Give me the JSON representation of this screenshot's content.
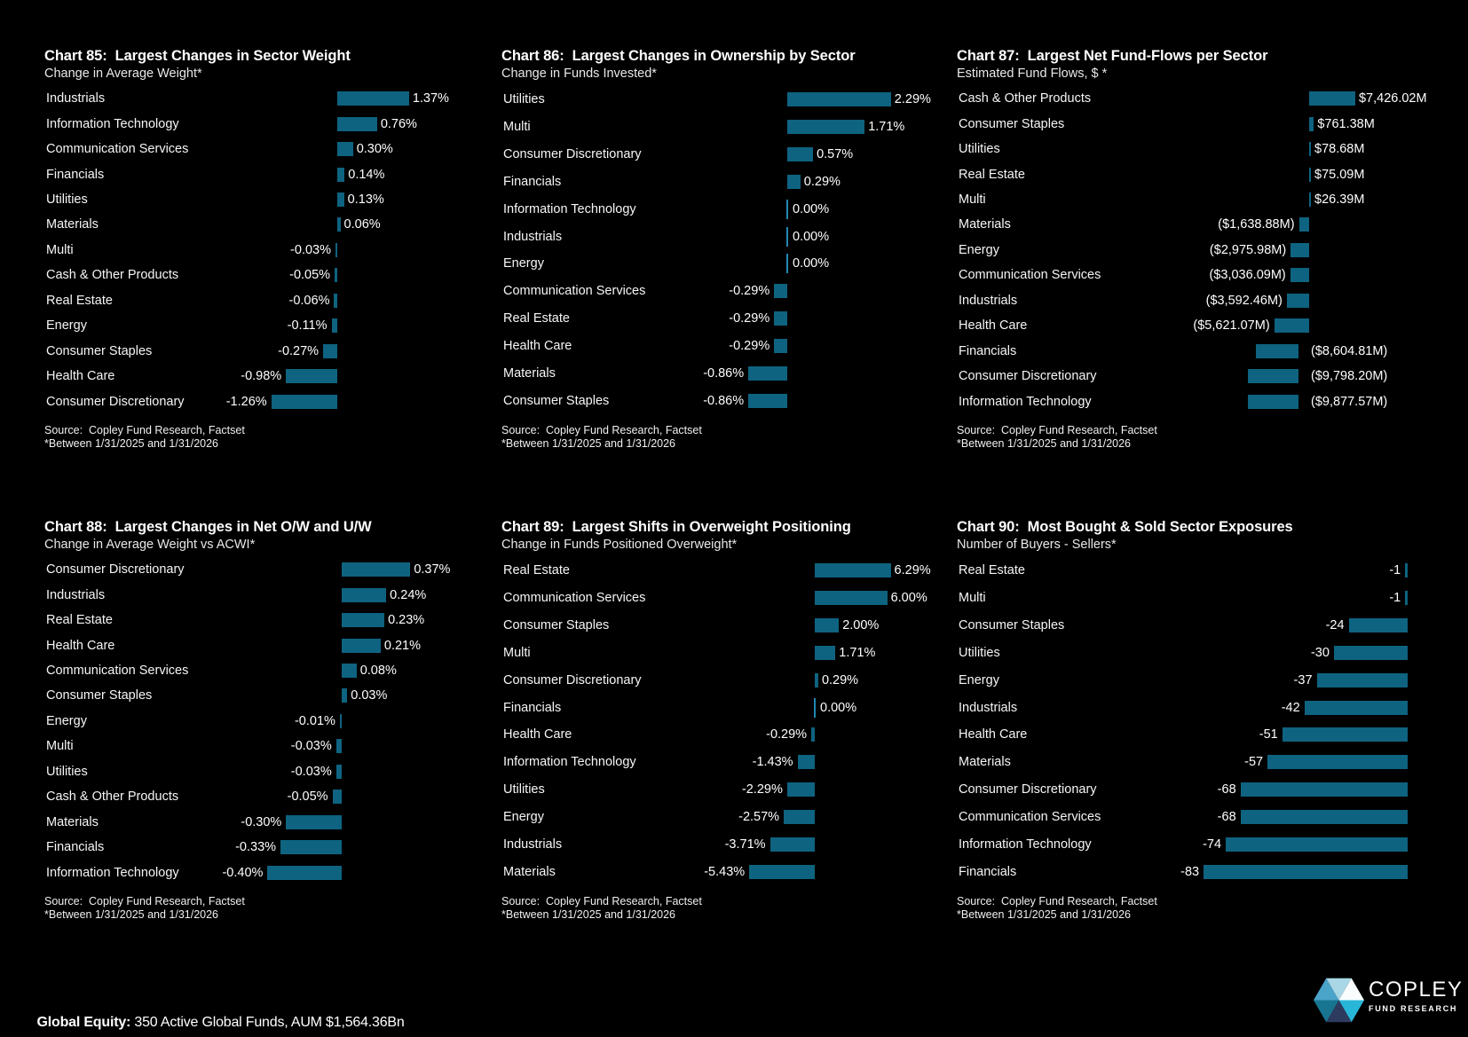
{
  "page": {
    "footer": {
      "label_bold": "Global Equity:",
      "label_rest": " 350 Active Global Funds, AUM $1,564.36Bn"
    },
    "logo": {
      "line1": "COPLEY",
      "line2": "FUND RESEARCH"
    }
  },
  "colors": {
    "background": "#000000",
    "bar": "#0E6380",
    "zero_tick": "#2189B2",
    "logo_teal": "#2BB6D8"
  },
  "chart_data": [
    {
      "id": "chart-85",
      "type": "bar",
      "orientation": "horizontal-diverging",
      "title": "Chart 85:  Largest Changes in Sector Weight",
      "subtitle": "Change in Average Weight*",
      "unit": "%",
      "source_line1": "Source:  Copley Fund Research, Factset",
      "source_line2": "*Between 1/31/2025 and 1/31/2026",
      "items": [
        {
          "sector": "Industrials",
          "value": 1.37,
          "display": "1.37%"
        },
        {
          "sector": "Information Technology",
          "value": 0.76,
          "display": "0.76%"
        },
        {
          "sector": "Communication Services",
          "value": 0.3,
          "display": "0.30%"
        },
        {
          "sector": "Financials",
          "value": 0.14,
          "display": "0.14%"
        },
        {
          "sector": "Utilities",
          "value": 0.13,
          "display": "0.13%"
        },
        {
          "sector": "Materials",
          "value": 0.06,
          "display": "0.06%"
        },
        {
          "sector": "Multi",
          "value": -0.03,
          "display": "-0.03%"
        },
        {
          "sector": "Cash & Other Products",
          "value": -0.05,
          "display": "-0.05%"
        },
        {
          "sector": "Real Estate",
          "value": -0.06,
          "display": "-0.06%"
        },
        {
          "sector": "Energy",
          "value": -0.11,
          "display": "-0.11%"
        },
        {
          "sector": "Consumer Staples",
          "value": -0.27,
          "display": "-0.27%"
        },
        {
          "sector": "Health Care",
          "value": -0.98,
          "display": "-0.98%"
        },
        {
          "sector": "Consumer Discretionary",
          "value": -1.26,
          "display": "-1.26%"
        }
      ]
    },
    {
      "id": "chart-86",
      "type": "bar",
      "orientation": "horizontal-diverging",
      "title": "Chart 86:  Largest Changes in Ownership by Sector",
      "subtitle": "Change in Funds Invested*",
      "unit": "%",
      "source_line1": "Source:  Copley Fund Research, Factset",
      "source_line2": "*Between 1/31/2025 and 1/31/2026",
      "items": [
        {
          "sector": "Utilities",
          "value": 2.29,
          "display": "2.29%"
        },
        {
          "sector": "Multi",
          "value": 1.71,
          "display": "1.71%"
        },
        {
          "sector": "Consumer Discretionary",
          "value": 0.57,
          "display": "0.57%"
        },
        {
          "sector": "Financials",
          "value": 0.29,
          "display": "0.29%"
        },
        {
          "sector": "Information Technology",
          "value": 0.0,
          "display": "0.00%"
        },
        {
          "sector": "Industrials",
          "value": 0.0,
          "display": "0.00%"
        },
        {
          "sector": "Energy",
          "value": 0.0,
          "display": "0.00%"
        },
        {
          "sector": "Communication Services",
          "value": -0.29,
          "display": "-0.29%"
        },
        {
          "sector": "Real Estate",
          "value": -0.29,
          "display": "-0.29%"
        },
        {
          "sector": "Health Care",
          "value": -0.29,
          "display": "-0.29%"
        },
        {
          "sector": "Materials",
          "value": -0.86,
          "display": "-0.86%"
        },
        {
          "sector": "Consumer Staples",
          "value": -0.86,
          "display": "-0.86%"
        }
      ]
    },
    {
      "id": "chart-87",
      "type": "bar",
      "orientation": "horizontal-diverging",
      "title": "Chart 87:  Largest Net Fund-Flows per Sector",
      "subtitle": "Estimated Fund Flows, $ *",
      "unit": "$M",
      "source_line1": "Source:  Copley Fund Research, Factset",
      "source_line2": "*Between 1/31/2025 and 1/31/2026",
      "items": [
        {
          "sector": "Cash & Other Products",
          "value": 7426.02,
          "display": "$7,426.02M"
        },
        {
          "sector": "Consumer Staples",
          "value": 761.38,
          "display": "$761.38M"
        },
        {
          "sector": "Utilities",
          "value": 78.68,
          "display": "$78.68M"
        },
        {
          "sector": "Real Estate",
          "value": 75.09,
          "display": "$75.09M"
        },
        {
          "sector": "Multi",
          "value": 26.39,
          "display": "$26.39M"
        },
        {
          "sector": "Materials",
          "value": -1638.88,
          "display": "($1,638.88M)"
        },
        {
          "sector": "Energy",
          "value": -2975.98,
          "display": "($2,975.98M)"
        },
        {
          "sector": "Communication Services",
          "value": -3036.09,
          "display": "($3,036.09M)"
        },
        {
          "sector": "Industrials",
          "value": -3592.46,
          "display": "($3,592.46M)"
        },
        {
          "sector": "Health Care",
          "value": -5621.07,
          "display": "($5,621.07M)"
        },
        {
          "sector": "Financials",
          "value": -8604.81,
          "display": "($8,604.81M)",
          "label_side": "right"
        },
        {
          "sector": "Consumer Discretionary",
          "value": -9798.2,
          "display": "($9,798.20M)",
          "label_side": "right"
        },
        {
          "sector": "Information Technology",
          "value": -9877.57,
          "display": "($9,877.57M)",
          "label_side": "right"
        }
      ]
    },
    {
      "id": "chart-88",
      "type": "bar",
      "orientation": "horizontal-diverging",
      "title": "Chart 88:  Largest Changes in Net O/W and U/W",
      "subtitle": "Change in Average Weight vs ACWI*",
      "unit": "%",
      "source_line1": "Source:  Copley Fund Research, Factset",
      "source_line2": "*Between 1/31/2025 and 1/31/2026",
      "items": [
        {
          "sector": "Consumer Discretionary",
          "value": 0.37,
          "display": "0.37%"
        },
        {
          "sector": "Industrials",
          "value": 0.24,
          "display": "0.24%"
        },
        {
          "sector": "Real Estate",
          "value": 0.23,
          "display": "0.23%"
        },
        {
          "sector": "Health Care",
          "value": 0.21,
          "display": "0.21%"
        },
        {
          "sector": "Communication Services",
          "value": 0.08,
          "display": "0.08%"
        },
        {
          "sector": "Consumer Staples",
          "value": 0.03,
          "display": "0.03%"
        },
        {
          "sector": "Energy",
          "value": -0.01,
          "display": "-0.01%"
        },
        {
          "sector": "Multi",
          "value": -0.03,
          "display": "-0.03%"
        },
        {
          "sector": "Utilities",
          "value": -0.03,
          "display": "-0.03%"
        },
        {
          "sector": "Cash & Other Products",
          "value": -0.05,
          "display": "-0.05%"
        },
        {
          "sector": "Materials",
          "value": -0.3,
          "display": "-0.30%"
        },
        {
          "sector": "Financials",
          "value": -0.33,
          "display": "-0.33%"
        },
        {
          "sector": "Information Technology",
          "value": -0.4,
          "display": "-0.40%"
        }
      ]
    },
    {
      "id": "chart-89",
      "type": "bar",
      "orientation": "horizontal-diverging",
      "title": "Chart 89:  Largest Shifts in Overweight Positioning",
      "subtitle": "Change in Funds Positioned Overweight*",
      "unit": "%",
      "source_line1": "Source:  Copley Fund Research, Factset",
      "source_line2": "*Between 1/31/2025 and 1/31/2026",
      "items": [
        {
          "sector": "Real Estate",
          "value": 6.29,
          "display": "6.29%"
        },
        {
          "sector": "Communication Services",
          "value": 6.0,
          "display": "6.00%"
        },
        {
          "sector": "Consumer Staples",
          "value": 2.0,
          "display": "2.00%"
        },
        {
          "sector": "Multi",
          "value": 1.71,
          "display": "1.71%"
        },
        {
          "sector": "Consumer Discretionary",
          "value": 0.29,
          "display": "0.29%"
        },
        {
          "sector": "Financials",
          "value": 0.0,
          "display": "0.00%"
        },
        {
          "sector": "Health Care",
          "value": -0.29,
          "display": "-0.29%"
        },
        {
          "sector": "Information Technology",
          "value": -1.43,
          "display": "-1.43%"
        },
        {
          "sector": "Utilities",
          "value": -2.29,
          "display": "-2.29%"
        },
        {
          "sector": "Energy",
          "value": -2.57,
          "display": "-2.57%"
        },
        {
          "sector": "Industrials",
          "value": -3.71,
          "display": "-3.71%"
        },
        {
          "sector": "Materials",
          "value": -5.43,
          "display": "-5.43%"
        }
      ]
    },
    {
      "id": "chart-90",
      "type": "bar",
      "orientation": "horizontal-diverging",
      "title": "Chart 90:  Most Bought & Sold Sector Exposures",
      "subtitle": "Number of Buyers - Sellers*",
      "unit": "count",
      "source_line1": "Source:  Copley Fund Research, Factset",
      "source_line2": "*Between 1/31/2025 and 1/31/2026",
      "items": [
        {
          "sector": "Real Estate",
          "value": -1,
          "display": "-1"
        },
        {
          "sector": "Multi",
          "value": -1,
          "display": "-1"
        },
        {
          "sector": "Consumer Staples",
          "value": -24,
          "display": "-24"
        },
        {
          "sector": "Utilities",
          "value": -30,
          "display": "-30"
        },
        {
          "sector": "Energy",
          "value": -37,
          "display": "-37"
        },
        {
          "sector": "Industrials",
          "value": -42,
          "display": "-42"
        },
        {
          "sector": "Health Care",
          "value": -51,
          "display": "-51"
        },
        {
          "sector": "Materials",
          "value": -57,
          "display": "-57"
        },
        {
          "sector": "Consumer Discretionary",
          "value": -68,
          "display": "-68"
        },
        {
          "sector": "Communication Services",
          "value": -68,
          "display": "-68"
        },
        {
          "sector": "Information Technology",
          "value": -74,
          "display": "-74"
        },
        {
          "sector": "Financials",
          "value": -83,
          "display": "-83"
        }
      ]
    }
  ]
}
